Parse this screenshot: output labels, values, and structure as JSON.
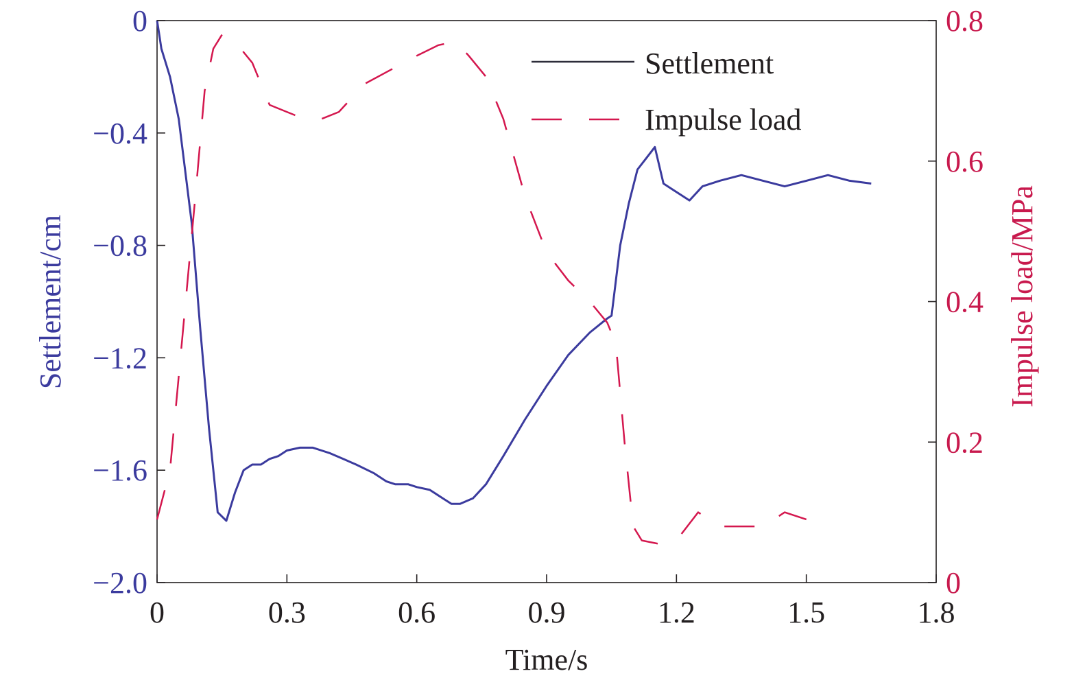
{
  "colors": {
    "settlement": "#3b3b9e",
    "settlement_dark": "#2d2d3a",
    "impulse": "#d4174e",
    "axis_left": "#3b3b9e",
    "axis_right": "#c8194d",
    "axis_text": "#231f20"
  },
  "chart_data": {
    "type": "line",
    "xlabel": "Time/s",
    "ylabel_left": "Settlement/cm",
    "ylabel_right": "Impulse load/MPa",
    "xlim": [
      0,
      1.8
    ],
    "ylim_left": [
      -2.0,
      0
    ],
    "ylim_right": [
      0,
      0.8
    ],
    "grid": false,
    "legend_position": "top-right",
    "x_ticks": [
      "0",
      "0.3",
      "0.6",
      "0.9",
      "1.2",
      "1.5",
      "1.8"
    ],
    "y_left_ticks": [
      "0",
      "−0.4",
      "−0.8",
      "−1.2",
      "−1.6",
      "−2.0"
    ],
    "y_right_ticks": [
      "0",
      "0.2",
      "0.4",
      "0.6",
      "0.8"
    ],
    "series": [
      {
        "name": "Settlement",
        "axis": "left",
        "style": "solid",
        "x": [
          0,
          0.005,
          0.01,
          0.02,
          0.03,
          0.05,
          0.08,
          0.1,
          0.12,
          0.14,
          0.16,
          0.18,
          0.2,
          0.22,
          0.24,
          0.26,
          0.28,
          0.3,
          0.33,
          0.36,
          0.38,
          0.4,
          0.43,
          0.46,
          0.5,
          0.53,
          0.55,
          0.58,
          0.6,
          0.63,
          0.66,
          0.68,
          0.7,
          0.73,
          0.76,
          0.8,
          0.85,
          0.9,
          0.95,
          1.0,
          1.04,
          1.05,
          1.07,
          1.09,
          1.11,
          1.13,
          1.15,
          1.17,
          1.19,
          1.21,
          1.23,
          1.26,
          1.3,
          1.35,
          1.4,
          1.45,
          1.5,
          1.55,
          1.6,
          1.65
        ],
        "values": [
          0,
          -0.05,
          -0.1,
          -0.15,
          -0.2,
          -0.35,
          -0.72,
          -1.1,
          -1.45,
          -1.75,
          -1.78,
          -1.68,
          -1.6,
          -1.58,
          -1.58,
          -1.56,
          -1.55,
          -1.53,
          -1.52,
          -1.52,
          -1.53,
          -1.54,
          -1.56,
          -1.58,
          -1.61,
          -1.64,
          -1.65,
          -1.65,
          -1.66,
          -1.67,
          -1.7,
          -1.72,
          -1.72,
          -1.7,
          -1.65,
          -1.55,
          -1.42,
          -1.3,
          -1.19,
          -1.11,
          -1.06,
          -1.05,
          -0.8,
          -0.65,
          -0.53,
          -0.49,
          -0.45,
          -0.58,
          -0.6,
          -0.62,
          -0.64,
          -0.59,
          -0.57,
          -0.55,
          -0.57,
          -0.59,
          -0.57,
          -0.55,
          -0.57,
          -0.58
        ]
      },
      {
        "name": "Impulse load",
        "axis": "right",
        "style": "dashed",
        "x": [
          0,
          0.03,
          0.06,
          0.09,
          0.11,
          0.13,
          0.15,
          0.18,
          0.22,
          0.26,
          0.3,
          0.34,
          0.38,
          0.42,
          0.48,
          0.54,
          0.6,
          0.65,
          0.69,
          0.72,
          0.76,
          0.8,
          0.85,
          0.9,
          0.95,
          1.0,
          1.04,
          1.06,
          1.08,
          1.1,
          1.12,
          1.16,
          1.2,
          1.25,
          1.3,
          1.4,
          1.45,
          1.5
        ],
        "values": [
          0.09,
          0.16,
          0.36,
          0.56,
          0.7,
          0.76,
          0.78,
          0.77,
          0.74,
          0.68,
          0.67,
          0.66,
          0.66,
          0.67,
          0.71,
          0.73,
          0.75,
          0.765,
          0.77,
          0.75,
          0.72,
          0.66,
          0.55,
          0.47,
          0.43,
          0.4,
          0.37,
          0.34,
          0.2,
          0.08,
          0.06,
          0.055,
          0.06,
          0.1,
          0.08,
          0.08,
          0.1,
          0.09
        ]
      }
    ]
  }
}
